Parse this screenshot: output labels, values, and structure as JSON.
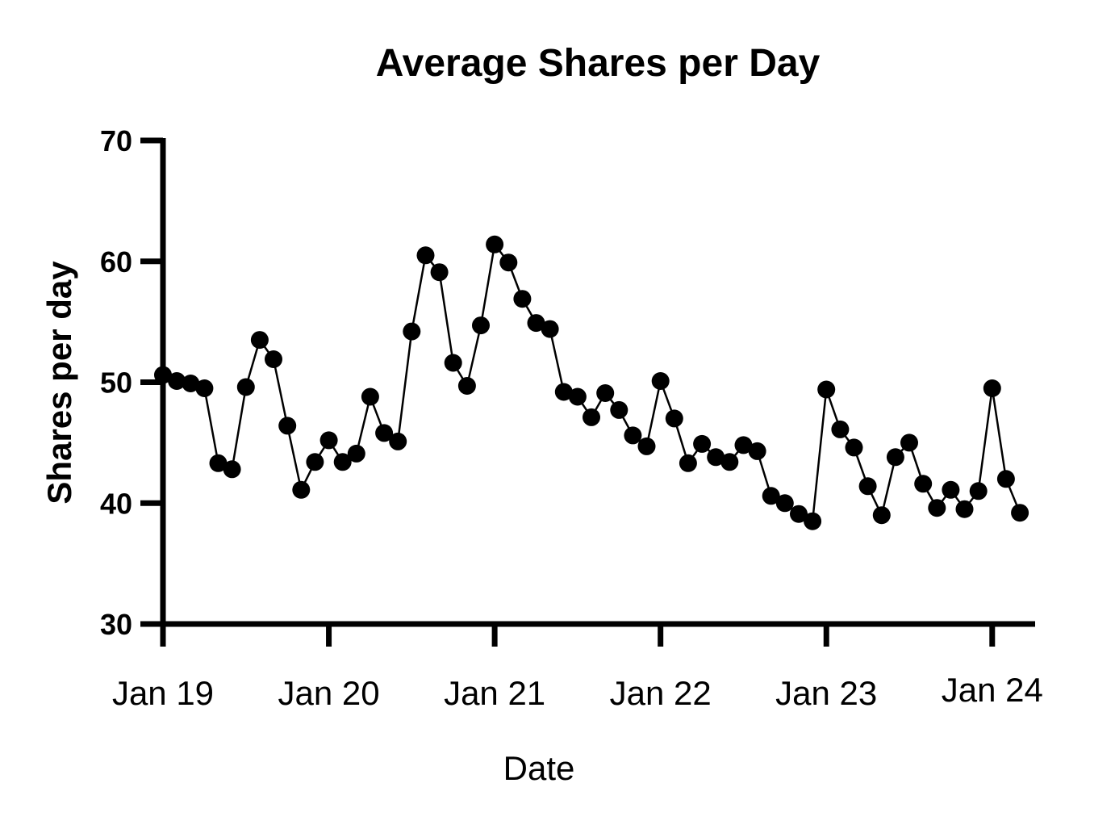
{
  "chart_data": {
    "type": "line",
    "title": "Average Shares per Day",
    "xlabel": "Date",
    "ylabel": "Shares per day",
    "ylim": [
      30,
      70
    ],
    "yticks": [
      30,
      40,
      50,
      60,
      70
    ],
    "xlim": [
      "2019-01",
      "2024-03"
    ],
    "xticks": [
      {
        "date": "2019-01",
        "label": "Jan 19"
      },
      {
        "date": "2020-01",
        "label": "Jan 20"
      },
      {
        "date": "2021-01",
        "label": "Jan 21"
      },
      {
        "date": "2022-01",
        "label": "Jan 22"
      },
      {
        "date": "2023-01",
        "label": "Jan 23"
      },
      {
        "date": "2024-01",
        "label": "Jan 24"
      }
    ],
    "grid": false,
    "legend": "none",
    "color": "#000000",
    "series": [
      {
        "x": [
          "2019-01",
          "2019-02",
          "2019-03",
          "2019-04",
          "2019-05",
          "2019-06",
          "2019-07",
          "2019-08",
          "2019-09",
          "2019-10",
          "2019-11",
          "2019-12",
          "2020-01",
          "2020-02",
          "2020-03",
          "2020-04",
          "2020-05",
          "2020-06",
          "2020-07",
          "2020-08",
          "2020-09",
          "2020-10",
          "2020-11",
          "2020-12",
          "2021-01",
          "2021-02",
          "2021-03",
          "2021-04",
          "2021-05",
          "2021-06",
          "2021-07",
          "2021-08",
          "2021-09",
          "2021-10",
          "2021-11",
          "2021-12",
          "2022-01",
          "2022-02",
          "2022-03",
          "2022-04",
          "2022-05",
          "2022-06",
          "2022-07",
          "2022-08",
          "2022-09",
          "2022-10",
          "2022-11",
          "2022-12",
          "2023-01",
          "2023-02",
          "2023-03",
          "2023-04",
          "2023-05",
          "2023-06",
          "2023-07",
          "2023-08",
          "2023-09",
          "2023-10",
          "2023-11",
          "2023-12",
          "2024-01",
          "2024-02",
          "2024-03"
        ],
        "values": [
          50.6,
          50.1,
          49.9,
          49.5,
          43.3,
          42.8,
          49.6,
          53.5,
          51.9,
          46.4,
          41.1,
          43.4,
          45.2,
          43.4,
          44.1,
          48.8,
          45.8,
          45.1,
          54.2,
          60.5,
          59.1,
          51.6,
          49.7,
          54.7,
          61.4,
          59.9,
          56.9,
          54.9,
          54.4,
          49.2,
          48.8,
          47.1,
          49.1,
          47.7,
          45.6,
          44.7,
          50.1,
          47.0,
          43.3,
          44.9,
          43.8,
          43.4,
          44.8,
          44.3,
          40.6,
          40.0,
          39.1,
          38.5,
          49.4,
          46.1,
          44.6,
          41.4,
          39.0,
          43.8,
          45.0,
          41.6,
          39.6,
          41.1,
          39.5,
          41.0,
          49.5,
          42.0,
          39.2
        ]
      }
    ]
  }
}
